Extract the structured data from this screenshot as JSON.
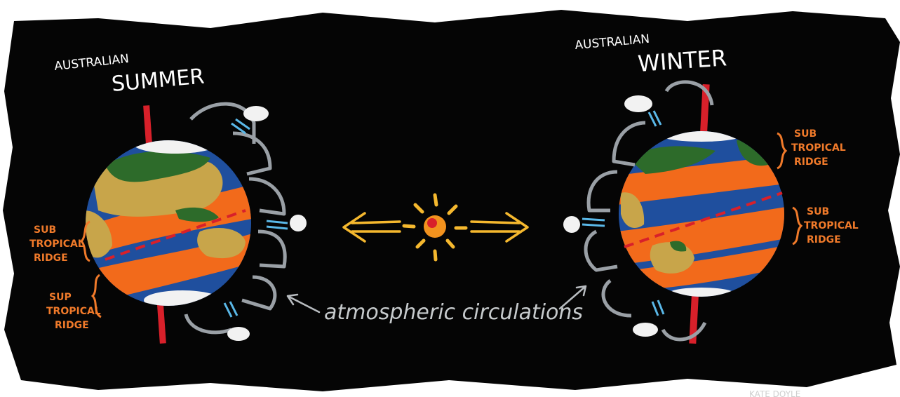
{
  "left": {
    "label_small": "AUSTRALIAN",
    "label_big": "SUMMER",
    "ridge1": [
      "SUB",
      "TROPICAL",
      "RIDGE"
    ],
    "ridge2": [
      "SUP",
      "TROPICAL",
      "RIDGE"
    ]
  },
  "right": {
    "label_small": "AUSTRALIAN",
    "label_big": "WINTER",
    "ridge1": [
      "SUB",
      "TROPICAL",
      "RIDGE"
    ],
    "ridge2": [
      "SUB",
      "TROPICAL",
      "RIDGE"
    ]
  },
  "center": {
    "caption": "atmospheric circulations"
  },
  "signature": "KATE DOYLE",
  "colors": {
    "background": "#050505",
    "ocean": "#1f4f9e",
    "land_green": "#2d6b2a",
    "land_tan": "#c8a54a",
    "band_orange": "#f26a1b",
    "ridge_text": "#f07a2a",
    "axis_red": "#d8202a",
    "sun": "#f5b82e",
    "arrow_gray": "#9aa0a6",
    "rain_blue": "#5ab8e8",
    "cloud": "#f2f2f2"
  }
}
